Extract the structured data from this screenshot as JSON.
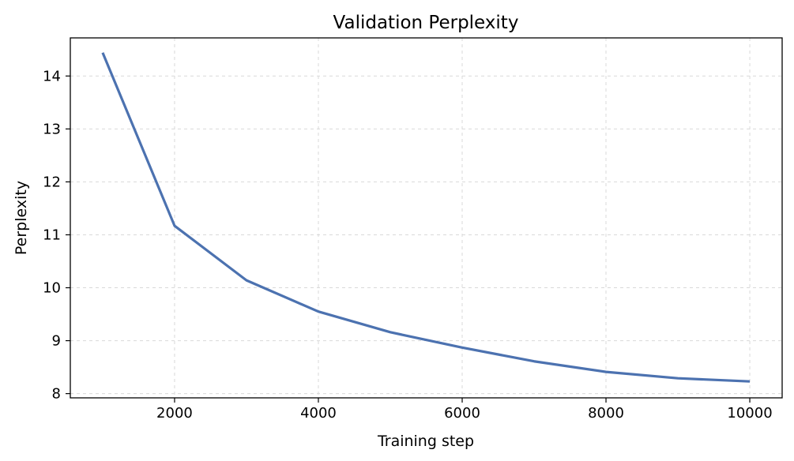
{
  "chart_data": {
    "type": "line",
    "title": "Validation Perplexity",
    "xlabel": "Training step",
    "ylabel": "Perplexity",
    "xlim": [
      550,
      10450
    ],
    "ylim": [
      7.92,
      14.72
    ],
    "xticks": [
      2000,
      4000,
      6000,
      8000,
      10000
    ],
    "yticks": [
      8,
      9,
      10,
      11,
      12,
      13,
      14
    ],
    "grid": true,
    "series": [
      {
        "color": "#4c72b0",
        "x": [
          1000,
          2000,
          3000,
          4000,
          5000,
          6000,
          7000,
          8000,
          9000,
          10000
        ],
        "y": [
          14.44,
          11.17,
          10.14,
          9.55,
          9.16,
          8.87,
          8.61,
          8.41,
          8.29,
          8.23
        ]
      }
    ]
  }
}
